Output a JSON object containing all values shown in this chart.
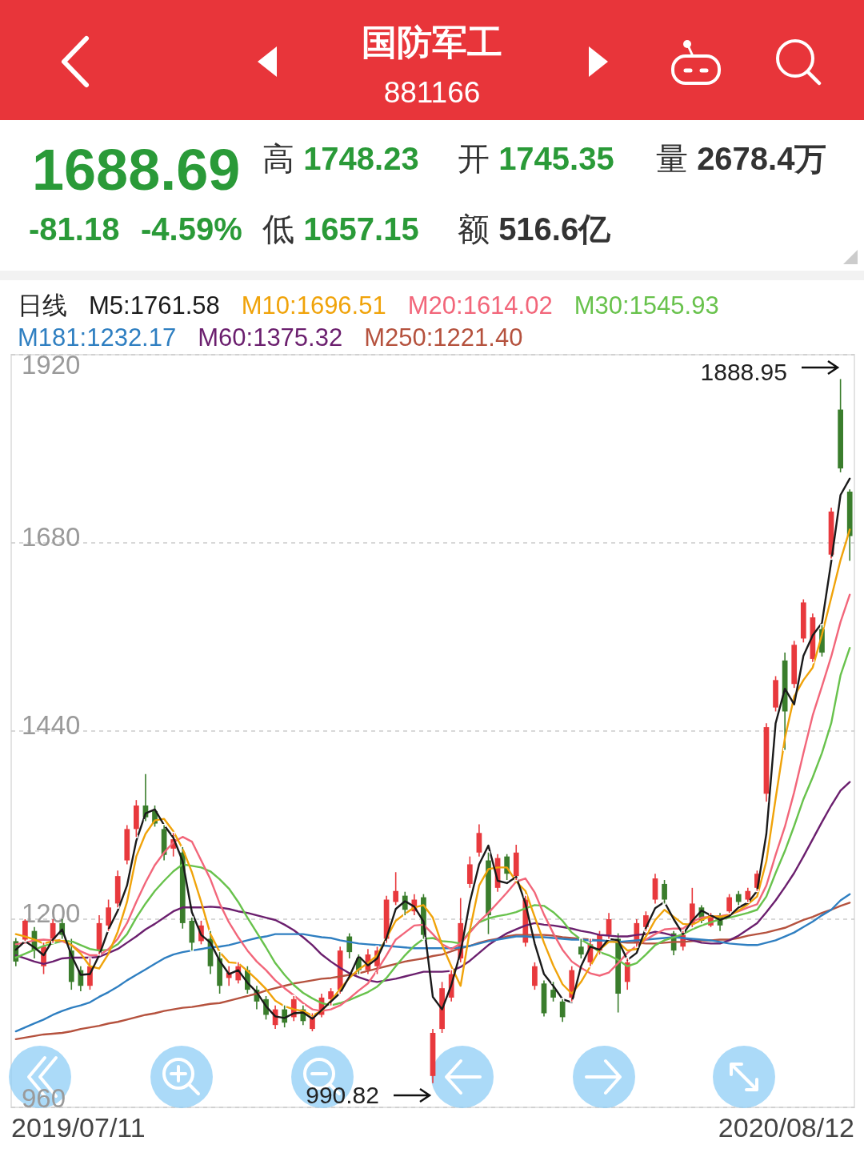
{
  "chart_data": {
    "type": "candlestick",
    "title": "国防军工",
    "subtitle": "881166",
    "annotations": [
      "1688.69",
      "-81.18",
      "-4.59%",
      "高 1748.23",
      "开 1745.35",
      "量 2678.4万",
      "低 1657.15",
      "额 516.6亿",
      "1888.95",
      "990.82",
      "2019/07/11",
      "2020/08/12"
    ],
    "legend": "top",
    "legend_title": "日线",
    "ylim": [
      960,
      1920
    ],
    "yticks": [
      960,
      1200,
      1440,
      1680,
      1920
    ],
    "grid": "y",
    "categories": [
      null,
      null,
      null,
      null,
      null,
      null,
      null,
      null,
      null,
      null,
      null,
      null,
      null,
      null,
      null,
      null,
      null,
      null,
      null,
      null,
      null,
      null,
      null,
      null,
      null,
      null,
      null,
      null,
      null,
      null,
      null,
      null,
      null,
      null,
      null,
      null,
      null,
      null,
      null,
      null,
      null,
      null,
      null,
      null,
      null,
      null,
      null,
      null,
      null,
      null,
      null,
      null,
      null,
      null,
      null,
      null,
      null,
      null,
      null,
      null,
      null,
      null,
      null,
      null,
      null,
      null,
      null,
      null,
      null,
      null,
      null,
      null,
      null,
      null,
      null,
      null,
      null,
      null,
      null,
      null,
      null,
      null,
      null,
      null,
      null,
      null,
      null,
      null,
      null,
      null,
      null
    ],
    "ohlc": [
      [
        1172,
        1176,
        1140,
        1146
      ],
      [
        1174,
        1200,
        1172,
        1198
      ],
      [
        1185,
        1190,
        1150,
        1160
      ],
      [
        1140,
        1170,
        1130,
        1165
      ],
      [
        1175,
        1200,
        1170,
        1195
      ],
      [
        1195,
        1200,
        1175,
        1180
      ],
      [
        1160,
        1175,
        1110,
        1120
      ],
      [
        1135,
        1140,
        1108,
        1115
      ],
      [
        1115,
        1150,
        1110,
        1140
      ],
      [
        1160,
        1205,
        1155,
        1195
      ],
      [
        1192,
        1225,
        1185,
        1215
      ],
      [
        1220,
        1262,
        1215,
        1255
      ],
      [
        1275,
        1320,
        1270,
        1315
      ],
      [
        1315,
        1352,
        1305,
        1345
      ],
      [
        1345,
        1385,
        1325,
        1330
      ],
      [
        1338,
        1345,
        1318,
        1322
      ],
      [
        1315,
        1320,
        1275,
        1282
      ],
      [
        1290,
        1310,
        1280,
        1302
      ],
      [
        1285,
        1292,
        1188,
        1195
      ],
      [
        1198,
        1202,
        1160,
        1170
      ],
      [
        1172,
        1198,
        1168,
        1192
      ],
      [
        1175,
        1185,
        1130,
        1140
      ],
      [
        1150,
        1158,
        1105,
        1115
      ],
      [
        1125,
        1140,
        1115,
        1132
      ],
      [
        1122,
        1145,
        1118,
        1140
      ],
      [
        1135,
        1140,
        1105,
        1110
      ],
      [
        1110,
        1115,
        1085,
        1095
      ],
      [
        1098,
        1102,
        1072,
        1078
      ],
      [
        1065,
        1090,
        1060,
        1085
      ],
      [
        1085,
        1090,
        1062,
        1068
      ],
      [
        1075,
        1102,
        1070,
        1098
      ],
      [
        1085,
        1090,
        1065,
        1070
      ],
      [
        1060,
        1080,
        1057,
        1075
      ],
      [
        1078,
        1105,
        1075,
        1100
      ],
      [
        1098,
        1112,
        1090,
        1108
      ],
      [
        1110,
        1165,
        1105,
        1160
      ],
      [
        1178,
        1182,
        1150,
        1158
      ],
      [
        1150,
        1155,
        1130,
        1135
      ],
      [
        1135,
        1162,
        1130,
        1155
      ],
      [
        1140,
        1165,
        1130,
        1160
      ],
      [
        1175,
        1230,
        1170,
        1225
      ],
      [
        1222,
        1260,
        1218,
        1236
      ],
      [
        1230,
        1235,
        1205,
        1212
      ],
      [
        1210,
        1232,
        1205,
        1225
      ],
      [
        1228,
        1232,
        1175,
        1180
      ],
      [
        1000,
        1060,
        990.82,
        1055
      ],
      [
        1060,
        1120,
        1055,
        1112
      ],
      [
        1100,
        1135,
        1095,
        1130
      ],
      [
        1150,
        1227,
        1145,
        1195
      ],
      [
        1245,
        1280,
        1240,
        1270
      ],
      [
        1285,
        1321,
        1280,
        1310
      ],
      [
        1275,
        1285,
        1181,
        1205
      ],
      [
        1240,
        1283,
        1235,
        1278
      ],
      [
        1280,
        1283,
        1250,
        1258
      ],
      [
        1255,
        1295,
        1250,
        1285
      ],
      [
        1170,
        1230,
        1165,
        1225
      ],
      [
        1115,
        1145,
        1110,
        1140
      ],
      [
        1118,
        1122,
        1076,
        1080
      ],
      [
        1110,
        1120,
        1095,
        1100
      ],
      [
        1095,
        1098,
        1069,
        1075
      ],
      [
        1100,
        1140,
        1095,
        1135
      ],
      [
        1165,
        1175,
        1150,
        1155
      ],
      [
        1145,
        1175,
        1140,
        1168
      ],
      [
        1160,
        1185,
        1155,
        1180
      ],
      [
        1180,
        1208,
        1175,
        1200
      ],
      [
        1175,
        1182,
        1081,
        1105
      ],
      [
        1120,
        1150,
        1110,
        1145
      ],
      [
        1170,
        1200,
        1165,
        1195
      ],
      [
        1190,
        1210,
        1185,
        1205
      ],
      [
        1225,
        1258,
        1220,
        1252
      ],
      [
        1245,
        1250,
        1220,
        1225
      ],
      [
        1182,
        1185,
        1154,
        1160
      ],
      [
        1165,
        1185,
        1160,
        1180
      ],
      [
        1195,
        1240,
        1190,
        1220
      ],
      [
        1215,
        1218,
        1195,
        1198
      ],
      [
        1192,
        1208,
        1190,
        1205
      ],
      [
        1205,
        1208,
        1185,
        1192
      ],
      [
        1210,
        1232,
        1208,
        1228
      ],
      [
        1232,
        1236,
        1218,
        1222
      ],
      [
        1225,
        1240,
        1222,
        1236
      ],
      [
        1240,
        1262,
        1236,
        1258
      ],
      [
        1360,
        1450,
        1350,
        1445
      ],
      [
        1470,
        1510,
        1465,
        1505
      ],
      [
        1530,
        1540,
        1416,
        1465
      ],
      [
        1500,
        1555,
        1495,
        1550
      ],
      [
        1558,
        1608,
        1553,
        1604
      ],
      [
        1532,
        1590,
        1528,
        1585
      ],
      [
        1570,
        1575,
        1535,
        1540
      ],
      [
        1665,
        1725,
        1660,
        1720
      ],
      [
        1850,
        1888.95,
        1770,
        1775
      ],
      [
        1745.35,
        1748.23,
        1657.15,
        1688.69
      ]
    ],
    "colors": [
      "#3a7d2c",
      "#e8393d",
      "#3a7d2c",
      "#e8393d",
      "#e8393d",
      "#3a7d2c",
      "#3a7d2c",
      "#3a7d2c",
      "#e8393d",
      "#e8393d",
      "#e8393d",
      "#e8393d",
      "#e8393d",
      "#e8393d",
      "#3a7d2c",
      "#3a7d2c",
      "#3a7d2c",
      "#e8393d",
      "#3a7d2c",
      "#3a7d2c",
      "#e8393d",
      "#3a7d2c",
      "#3a7d2c",
      "#e8393d",
      "#e8393d",
      "#3a7d2c",
      "#3a7d2c",
      "#3a7d2c",
      "#e8393d",
      "#3a7d2c",
      "#e8393d",
      "#3a7d2c",
      "#e8393d",
      "#e8393d",
      "#e8393d",
      "#e8393d",
      "#3a7d2c",
      "#3a7d2c",
      "#e8393d",
      "#e8393d",
      "#e8393d",
      "#e8393d",
      "#3a7d2c",
      "#e8393d",
      "#3a7d2c",
      "#e8393d",
      "#e8393d",
      "#e8393d",
      "#e8393d",
      "#e8393d",
      "#e8393d",
      "#3a7d2c",
      "#e8393d",
      "#3a7d2c",
      "#e8393d",
      "#e8393d",
      "#e8393d",
      "#3a7d2c",
      "#3a7d2c",
      "#3a7d2c",
      "#e8393d",
      "#3a7d2c",
      "#e8393d",
      "#e8393d",
      "#e8393d",
      "#3a7d2c",
      "#e8393d",
      "#e8393d",
      "#e8393d",
      "#e8393d",
      "#3a7d2c",
      "#3a7d2c",
      "#e8393d",
      "#e8393d",
      "#3a7d2c",
      "#e8393d",
      "#3a7d2c",
      "#e8393d",
      "#3a7d2c",
      "#e8393d",
      "#e8393d",
      "#e8393d",
      "#e8393d",
      "#3a7d2c",
      "#e8393d",
      "#e8393d",
      "#e8393d",
      "#3a7d2c",
      "#e8393d",
      "#3a7d2c",
      "#3a7d2c"
    ],
    "series": [
      {
        "type": "line",
        "name": "M5:1761.58",
        "color": "#1a1a1a",
        "values": [
          1161,
          1172,
          1164,
          1154,
          1174,
          1187,
          1154,
          1129,
          1130,
          1154,
          1187,
          1211,
          1243,
          1300,
          1335,
          1340,
          1320,
          1304,
          1274,
          1209,
          1180,
          1170,
          1147,
          1130,
          1135,
          1119,
          1107,
          1089,
          1076,
          1074,
          1080,
          1081,
          1073,
          1084,
          1095,
          1106,
          1127,
          1153,
          1141,
          1150,
          1176,
          1213,
          1223,
          1216,
          1197,
          1101,
          1085,
          1116,
          1158,
          1222,
          1270,
          1294,
          1249,
          1246,
          1254,
          1220,
          1169,
          1130,
          1115,
          1098,
          1094,
          1140,
          1165,
          1161,
          1175,
          1173,
          1148,
          1157,
          1189,
          1214,
          1222,
          1200,
          1181,
          1198,
          1211,
          1205,
          1199,
          1204,
          1215,
          1221,
          1236,
          1309,
          1450,
          1494,
          1474,
          1536,
          1562,
          1578,
          1656,
          1741,
          1762
        ]
      },
      {
        "type": "line",
        "name": "M10:1696.51",
        "color": "#f0a30a",
        "values": [
          1181,
          1178,
          1174,
          1169,
          1172,
          1174,
          1167,
          1156,
          1140,
          1137,
          1156,
          1184,
          1222,
          1280,
          1309,
          1326,
          1328,
          1312,
          1290,
          1260,
          1222,
          1181,
          1158,
          1145,
          1144,
          1134,
          1123,
          1111,
          1096,
          1089,
          1085,
          1083,
          1077,
          1083,
          1096,
          1111,
          1125,
          1136,
          1144,
          1154,
          1176,
          1198,
          1207,
          1215,
          1218,
          1202,
          1167,
          1140,
          1115,
          1186,
          1243,
          1264,
          1266,
          1266,
          1248,
          1236,
          1203,
          1170,
          1141,
          1117,
          1105,
          1120,
          1140,
          1161,
          1171,
          1171,
          1160,
          1162,
          1178,
          1199,
          1212,
          1203,
          1194,
          1193,
          1199,
          1204,
          1203,
          1205,
          1211,
          1219,
          1229,
          1274,
          1354,
          1431,
          1484,
          1505,
          1521,
          1563,
          1610,
          1658,
          1697
        ]
      },
      {
        "type": "line",
        "name": "M20:1614.02",
        "color": "#f2667a",
        "values": [
          1168,
          1170,
          1173,
          1174,
          1173,
          1172,
          1167,
          1159,
          1154,
          1154,
          1162,
          1175,
          1195,
          1222,
          1247,
          1269,
          1285,
          1298,
          1305,
          1299,
          1275,
          1251,
          1220,
          1196,
          1177,
          1160,
          1146,
          1135,
          1122,
          1112,
          1103,
          1093,
          1085,
          1083,
          1085,
          1090,
          1099,
          1109,
          1118,
          1135,
          1154,
          1174,
          1183,
          1192,
          1193,
          1181,
          1168,
          1162,
          1169,
          1183,
          1197,
          1208,
          1221,
          1234,
          1248,
          1252,
          1234,
          1206,
          1182,
          1161,
          1146,
          1138,
          1131,
          1128,
          1132,
          1144,
          1157,
          1166,
          1174,
          1181,
          1187,
          1188,
          1188,
          1197,
          1202,
          1203,
          1204,
          1206,
          1210,
          1215,
          1219,
          1243,
          1282,
          1318,
          1362,
          1412,
          1460,
          1497,
          1535,
          1579,
          1614
        ]
      },
      {
        "type": "line",
        "name": "M30:1545.93",
        "color": "#68c24c",
        "values": [
          1151,
          1156,
          1161,
          1166,
          1169,
          1172,
          1172,
          1167,
          1162,
          1160,
          1161,
          1168,
          1181,
          1202,
          1220,
          1236,
          1249,
          1261,
          1270,
          1268,
          1266,
          1261,
          1251,
          1239,
          1222,
          1202,
          1183,
          1164,
          1144,
          1129,
          1116,
          1106,
          1099,
          1093,
          1090,
          1093,
          1097,
          1102,
          1107,
          1114,
          1125,
          1140,
          1154,
          1166,
          1175,
          1176,
          1172,
          1171,
          1169,
          1185,
          1196,
          1201,
          1204,
          1206,
          1209,
          1214,
          1218,
          1217,
          1209,
          1198,
          1183,
          1174,
          1167,
          1158,
          1154,
          1148,
          1140,
          1144,
          1155,
          1167,
          1173,
          1177,
          1181,
          1187,
          1192,
          1196,
          1200,
          1202,
          1205,
          1208,
          1212,
          1229,
          1259,
          1287,
          1319,
          1353,
          1381,
          1412,
          1450,
          1511,
          1546
        ]
      },
      {
        "type": "line",
        "name": "M181:1232.17",
        "color": "#2f7fc1",
        "values": [
          1057,
          1062,
          1067,
          1072,
          1078,
          1083,
          1087,
          1090,
          1094,
          1101,
          1107,
          1114,
          1122,
          1129,
          1136,
          1143,
          1150,
          1155,
          1158,
          1160,
          1162,
          1164,
          1165,
          1167,
          1170,
          1173,
          1176,
          1178,
          1181,
          1181,
          1181,
          1181,
          1179,
          1177,
          1176,
          1173,
          1171,
          1169,
          1168,
          1167,
          1166,
          1165,
          1164,
          1163,
          1163,
          1163,
          1163,
          1163,
          1164,
          1166,
          1169,
          1172,
          1174,
          1176,
          1178,
          1178,
          1177,
          1177,
          1176,
          1175,
          1174,
          1174,
          1173,
          1173,
          1172,
          1171,
          1172,
          1173,
          1174,
          1175,
          1176,
          1177,
          1176,
          1175,
          1174,
          1173,
          1171,
          1169,
          1168,
          1167,
          1167,
          1170,
          1173,
          1178,
          1183,
          1190,
          1197,
          1205,
          1212,
          1224,
          1232
        ]
      },
      {
        "type": "line",
        "name": "M60:1375.32",
        "color": "#6b1f6e",
        "values": [
          1154,
          1150,
          1146,
          1143,
          1146,
          1150,
          1151,
          1151,
          1151,
          1152,
          1157,
          1162,
          1170,
          1178,
          1187,
          1194,
          1202,
          1210,
          1215,
          1215,
          1215,
          1216,
          1215,
          1213,
          1210,
          1208,
          1205,
          1202,
          1199,
          1193,
          1186,
          1177,
          1167,
          1155,
          1146,
          1138,
          1131,
          1126,
          1122,
          1120,
          1122,
          1124,
          1127,
          1130,
          1133,
          1133,
          1133,
          1134,
          1139,
          1147,
          1157,
          1167,
          1175,
          1182,
          1187,
          1192,
          1195,
          1193,
          1192,
          1190,
          1188,
          1185,
          1183,
          1180,
          1179,
          1178,
          1178,
          1180,
          1181,
          1184,
          1182,
          1179,
          1176,
          1173,
          1170,
          1169,
          1169,
          1173,
          1179,
          1187,
          1195,
          1209,
          1224,
          1241,
          1259,
          1280,
          1302,
          1324,
          1345,
          1364,
          1375
        ]
      },
      {
        "type": "line",
        "name": "M250:1221.40",
        "color": "#b5523e",
        "values": [
          1047,
          1049,
          1051,
          1053,
          1054,
          1055,
          1057,
          1060,
          1062,
          1064,
          1067,
          1069,
          1072,
          1075,
          1078,
          1080,
          1083,
          1085,
          1087,
          1088,
          1090,
          1092,
          1093,
          1096,
          1099,
          1102,
          1105,
          1109,
          1112,
          1115,
          1118,
          1120,
          1122,
          1124,
          1125,
          1127,
          1129,
          1131,
          1134,
          1137,
          1140,
          1143,
          1146,
          1148,
          1150,
          1153,
          1155,
          1159,
          1163,
          1166,
          1170,
          1173,
          1175,
          1178,
          1180,
          1180,
          1180,
          1180,
          1179,
          1177,
          1176,
          1175,
          1174,
          1173,
          1172,
          1171,
          1170,
          1170,
          1169,
          1169,
          1170,
          1171,
          1171,
          1172,
          1173,
          1173,
          1174,
          1174,
          1176,
          1179,
          1181,
          1183,
          1186,
          1189,
          1194,
          1199,
          1203,
          1208,
          1212,
          1217,
          1221
        ]
      }
    ]
  }
}
